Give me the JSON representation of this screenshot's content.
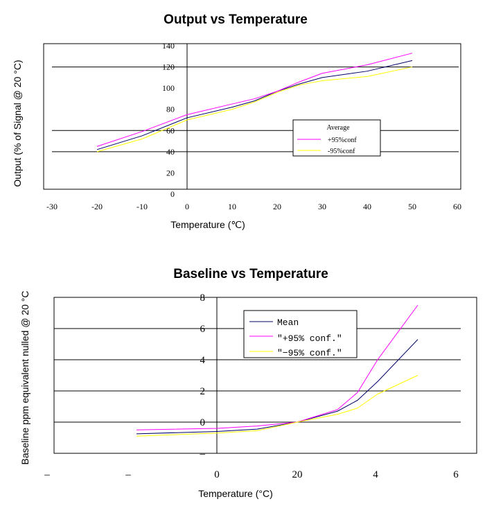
{
  "chart_data": [
    {
      "type": "line",
      "title": "Output vs Temperature",
      "xlabel": "Temperature (℃)",
      "ylabel": "Output (% of Signal @ 20 °C)",
      "xlim": [
        -30,
        60
      ],
      "ylim": [
        0,
        140
      ],
      "x_ticks": [
        "-30",
        "-20",
        "-10",
        "0",
        "10",
        "20",
        "30",
        "40",
        "50",
        "60"
      ],
      "y_ticks": [
        "0",
        "20",
        "40",
        "60",
        "80",
        "100",
        "120",
        "140"
      ],
      "gridlines_y": [
        40,
        60,
        120
      ],
      "legend": {
        "title": "Average",
        "position": "center-right",
        "entries": [
          "+95%conf",
          "-95%conf"
        ]
      },
      "series": [
        {
          "name": "Average",
          "color": "#000066",
          "x": [
            -20,
            -10,
            0,
            10,
            15,
            20,
            25,
            30,
            40,
            50
          ],
          "y": [
            42,
            55,
            72,
            82,
            88,
            97,
            104,
            110,
            116,
            126
          ]
        },
        {
          "name": "+95%conf",
          "color": "#ff00ff",
          "x": [
            -20,
            -10,
            0,
            10,
            15,
            20,
            25,
            30,
            40,
            50
          ],
          "y": [
            45,
            59,
            75,
            85,
            90,
            97,
            106,
            114,
            122,
            133
          ]
        },
        {
          "name": "-95%conf",
          "color": "#ffff00",
          "x": [
            -20,
            -10,
            0,
            10,
            15,
            20,
            25,
            30,
            40,
            50
          ],
          "y": [
            40,
            52,
            70,
            80,
            87,
            96,
            103,
            107,
            111,
            120
          ]
        }
      ]
    },
    {
      "type": "line",
      "title": "Baseline vs Temperature",
      "xlabel": "Temperature (°C)",
      "ylabel": "Baseline ppm equivalent nulled @ 20 °C",
      "xlim": [
        -40,
        60
      ],
      "ylim": [
        -2,
        8
      ],
      "x_ticks": [
        "–",
        "–",
        "0",
        "20",
        "4",
        "6"
      ],
      "y_ticks": [
        "–",
        "0",
        "2",
        "4",
        "6",
        "8"
      ],
      "gridlines_y": [
        0,
        2,
        4,
        6
      ],
      "legend": {
        "title": "",
        "position": "top-center",
        "entries": [
          "Mean",
          "\"+95% conf.\"",
          "\"−95% conf.\""
        ]
      },
      "series": [
        {
          "name": "Mean",
          "color": "#000066",
          "x": [
            -20,
            0,
            10,
            20,
            30,
            35,
            40,
            50
          ],
          "y": [
            -0.75,
            -0.6,
            -0.45,
            0,
            0.7,
            1.4,
            2.6,
            5.3
          ]
        },
        {
          "name": "+95% conf.",
          "color": "#ff00ff",
          "x": [
            -20,
            0,
            10,
            20,
            30,
            35,
            40,
            50
          ],
          "y": [
            -0.5,
            -0.4,
            -0.25,
            0,
            0.8,
            1.9,
            4.0,
            7.5
          ]
        },
        {
          "name": "-95% conf.",
          "color": "#ffff00",
          "x": [
            -20,
            0,
            10,
            20,
            30,
            35,
            40,
            50
          ],
          "y": [
            -0.9,
            -0.7,
            -0.55,
            0,
            0.5,
            0.9,
            1.8,
            3.0
          ]
        }
      ]
    }
  ]
}
